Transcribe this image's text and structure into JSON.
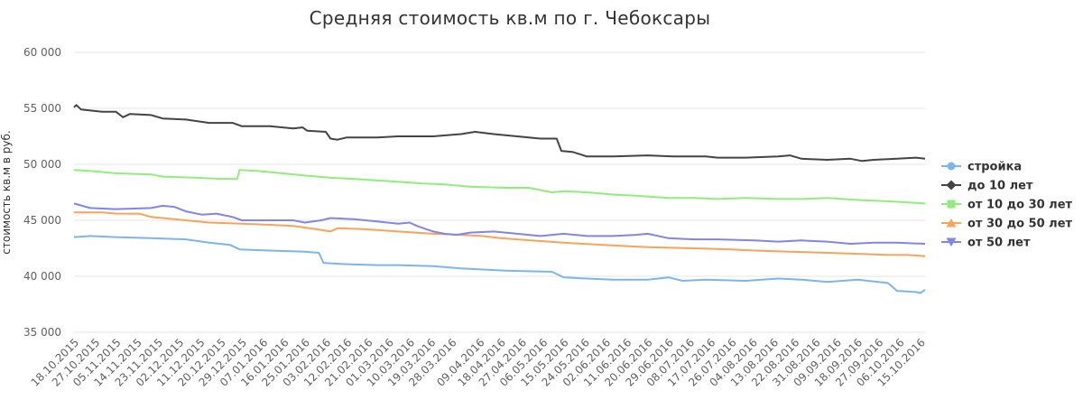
{
  "chart_data": {
    "type": "line",
    "title": "Средняя стоимость кв.м по г. Чебоксары",
    "ylabel": "стоимость кв.м в руб.",
    "xlabel": "",
    "ylim": [
      35000,
      60000
    ],
    "yticks": [
      35000,
      40000,
      45000,
      50000,
      55000,
      60000
    ],
    "ytick_labels": [
      "35 000",
      "40 000",
      "45 000",
      "50 000",
      "55 000",
      "60 000"
    ],
    "x_start": "18.10.2015",
    "x_end": "17.10.2016",
    "xticks": [
      "18.10.2015",
      "27.10.2015",
      "05.11.2015",
      "14.11.2015",
      "23.11.2015",
      "02.12.2015",
      "11.12.2015",
      "20.12.2015",
      "29.12.2015",
      "07.01.2016",
      "16.01.2016",
      "25.01.2016",
      "03.02.2016",
      "12.02.2016",
      "21.02.2016",
      "01.03.2016",
      "10.03.2016",
      "19.03.2016",
      "28.03.2016",
      "09.04.2016",
      "18.04.2016",
      "27.04.2016",
      "06.05.2016",
      "15.05.2016",
      "24.05.2016",
      "02.06.2016",
      "11.06.2016",
      "20.06.2016",
      "29.06.2016",
      "08.07.2016",
      "17.07.2016",
      "26.07.2016",
      "04.08.2016",
      "13.08.2016",
      "22.08.2016",
      "31.08.2016",
      "09.09.2016",
      "18.09.2016",
      "27.09.2016",
      "06.10.2016",
      "15.10.2016"
    ],
    "grid": true,
    "legend_position": "right",
    "series": [
      {
        "name": "стройка",
        "color": "#7cb5ec",
        "marker": "circle",
        "points": [
          [
            "18.10.2015",
            43500
          ],
          [
            "25.10.2015",
            43600
          ],
          [
            "05.11.2015",
            43500
          ],
          [
            "20.11.2015",
            43400
          ],
          [
            "05.12.2015",
            43300
          ],
          [
            "15.12.2015",
            43000
          ],
          [
            "24.12.2015",
            42800
          ],
          [
            "28.12.2015",
            42400
          ],
          [
            "10.01.2016",
            42300
          ],
          [
            "25.01.2016",
            42200
          ],
          [
            "31.01.2016",
            42100
          ],
          [
            "02.02.2016",
            41200
          ],
          [
            "10.02.2016",
            41100
          ],
          [
            "25.02.2016",
            41000
          ],
          [
            "05.03.2016",
            41000
          ],
          [
            "20.03.2016",
            40900
          ],
          [
            "01.04.2016",
            40700
          ],
          [
            "20.04.2016",
            40500
          ],
          [
            "10.05.2016",
            40400
          ],
          [
            "15.05.2016",
            39900
          ],
          [
            "25.05.2016",
            39800
          ],
          [
            "05.06.2016",
            39700
          ],
          [
            "20.06.2016",
            39700
          ],
          [
            "29.06.2016",
            39900
          ],
          [
            "05.07.2016",
            39600
          ],
          [
            "15.07.2016",
            39700
          ],
          [
            "01.08.2016",
            39600
          ],
          [
            "15.08.2016",
            39800
          ],
          [
            "25.08.2016",
            39700
          ],
          [
            "05.09.2016",
            39500
          ],
          [
            "18.09.2016",
            39700
          ],
          [
            "01.10.2016",
            39400
          ],
          [
            "05.10.2016",
            38700
          ],
          [
            "13.10.2016",
            38600
          ],
          [
            "15.10.2016",
            38500
          ],
          [
            "17.10.2016",
            38800
          ]
        ]
      },
      {
        "name": "до 10 лет",
        "color": "#434348",
        "marker": "diamond",
        "points": [
          [
            "18.10.2015",
            55100
          ],
          [
            "19.10.2015",
            55300
          ],
          [
            "21.10.2015",
            54900
          ],
          [
            "30.10.2015",
            54700
          ],
          [
            "05.11.2015",
            54700
          ],
          [
            "08.11.2015",
            54200
          ],
          [
            "11.11.2015",
            54500
          ],
          [
            "20.11.2015",
            54400
          ],
          [
            "25.11.2015",
            54100
          ],
          [
            "05.12.2015",
            54000
          ],
          [
            "15.12.2015",
            53700
          ],
          [
            "25.12.2015",
            53700
          ],
          [
            "29.12.2015",
            53400
          ],
          [
            "10.01.2016",
            53400
          ],
          [
            "20.01.2016",
            53200
          ],
          [
            "24.01.2016",
            53300
          ],
          [
            "26.01.2016",
            53000
          ],
          [
            "03.02.2016",
            52900
          ],
          [
            "05.02.2016",
            52300
          ],
          [
            "08.02.2016",
            52200
          ],
          [
            "12.02.2016",
            52400
          ],
          [
            "25.02.2016",
            52400
          ],
          [
            "05.03.2016",
            52500
          ],
          [
            "20.03.2016",
            52500
          ],
          [
            "01.04.2016",
            52700
          ],
          [
            "07.04.2016",
            52900
          ],
          [
            "15.04.2016",
            52700
          ],
          [
            "25.04.2016",
            52500
          ],
          [
            "05.05.2016",
            52300
          ],
          [
            "12.05.2016",
            52300
          ],
          [
            "14.05.2016",
            51200
          ],
          [
            "19.05.2016",
            51100
          ],
          [
            "22.05.2016",
            50900
          ],
          [
            "25.05.2016",
            50700
          ],
          [
            "05.06.2016",
            50700
          ],
          [
            "20.06.2016",
            50800
          ],
          [
            "01.07.2016",
            50700
          ],
          [
            "15.07.2016",
            50700
          ],
          [
            "20.07.2016",
            50600
          ],
          [
            "01.08.2016",
            50600
          ],
          [
            "15.08.2016",
            50700
          ],
          [
            "20.08.2016",
            50800
          ],
          [
            "25.08.2016",
            50500
          ],
          [
            "05.09.2016",
            50400
          ],
          [
            "15.09.2016",
            50500
          ],
          [
            "20.09.2016",
            50300
          ],
          [
            "25.09.2016",
            50400
          ],
          [
            "05.10.2016",
            50500
          ],
          [
            "13.10.2016",
            50600
          ],
          [
            "17.10.2016",
            50500
          ]
        ]
      },
      {
        "name": "от 10 до 30 лет",
        "color": "#90ed7d",
        "marker": "square",
        "points": [
          [
            "18.10.2015",
            49500
          ],
          [
            "25.10.2015",
            49400
          ],
          [
            "05.11.2015",
            49200
          ],
          [
            "20.11.2015",
            49100
          ],
          [
            "25.11.2015",
            48900
          ],
          [
            "10.12.2015",
            48800
          ],
          [
            "20.12.2015",
            48700
          ],
          [
            "25.12.2015",
            48700
          ],
          [
            "27.12.2015",
            48700
          ],
          [
            "28.12.2015",
            49500
          ],
          [
            "05.01.2016",
            49400
          ],
          [
            "15.01.2016",
            49200
          ],
          [
            "25.01.2016",
            49000
          ],
          [
            "05.02.2016",
            48800
          ],
          [
            "15.02.2016",
            48700
          ],
          [
            "01.03.2016",
            48500
          ],
          [
            "15.03.2016",
            48300
          ],
          [
            "25.03.2016",
            48200
          ],
          [
            "05.04.2016",
            48000
          ],
          [
            "20.04.2016",
            47900
          ],
          [
            "30.04.2016",
            47900
          ],
          [
            "05.05.2016",
            47700
          ],
          [
            "10.05.2016",
            47500
          ],
          [
            "15.05.2016",
            47600
          ],
          [
            "25.05.2016",
            47500
          ],
          [
            "05.06.2016",
            47300
          ],
          [
            "15.06.2016",
            47200
          ],
          [
            "29.06.2016",
            47000
          ],
          [
            "10.07.2016",
            47000
          ],
          [
            "20.07.2016",
            46900
          ],
          [
            "01.08.2016",
            47000
          ],
          [
            "15.08.2016",
            46900
          ],
          [
            "25.08.2016",
            46900
          ],
          [
            "05.09.2016",
            47000
          ],
          [
            "20.09.2016",
            46800
          ],
          [
            "01.10.2016",
            46700
          ],
          [
            "10.10.2016",
            46600
          ],
          [
            "17.10.2016",
            46500
          ]
        ]
      },
      {
        "name": "от 30 до 50 лет",
        "color": "#f7a35c",
        "marker": "triangle",
        "points": [
          [
            "18.10.2015",
            45700
          ],
          [
            "30.10.2015",
            45700
          ],
          [
            "05.11.2015",
            45600
          ],
          [
            "15.11.2015",
            45600
          ],
          [
            "20.11.2015",
            45300
          ],
          [
            "05.12.2015",
            45000
          ],
          [
            "15.12.2015",
            44800
          ],
          [
            "29.12.2015",
            44700
          ],
          [
            "10.01.2016",
            44600
          ],
          [
            "20.01.2016",
            44500
          ],
          [
            "30.01.2016",
            44200
          ],
          [
            "05.02.2016",
            44000
          ],
          [
            "08.02.2016",
            44300
          ],
          [
            "20.02.2016",
            44200
          ],
          [
            "05.03.2016",
            44000
          ],
          [
            "20.03.2016",
            43800
          ],
          [
            "01.04.2016",
            43700
          ],
          [
            "10.04.2016",
            43600
          ],
          [
            "18.04.2016",
            43400
          ],
          [
            "01.05.2016",
            43200
          ],
          [
            "15.05.2016",
            43000
          ],
          [
            "01.06.2016",
            42800
          ],
          [
            "20.06.2016",
            42600
          ],
          [
            "10.07.2016",
            42500
          ],
          [
            "26.07.2016",
            42400
          ],
          [
            "05.08.2016",
            42300
          ],
          [
            "20.08.2016",
            42200
          ],
          [
            "05.09.2016",
            42100
          ],
          [
            "20.09.2016",
            42000
          ],
          [
            "01.10.2016",
            41900
          ],
          [
            "10.10.2016",
            41900
          ],
          [
            "17.10.2016",
            41800
          ]
        ]
      },
      {
        "name": "от 50 лет",
        "color": "#8085e9",
        "marker": "triangle-down",
        "points": [
          [
            "18.10.2015",
            46500
          ],
          [
            "25.10.2015",
            46100
          ],
          [
            "05.11.2015",
            46000
          ],
          [
            "20.11.2015",
            46100
          ],
          [
            "25.11.2015",
            46300
          ],
          [
            "30.11.2015",
            46200
          ],
          [
            "05.12.2015",
            45800
          ],
          [
            "12.12.2015",
            45500
          ],
          [
            "18.12.2015",
            45600
          ],
          [
            "25.12.2015",
            45300
          ],
          [
            "29.12.2015",
            45000
          ],
          [
            "10.01.2016",
            45000
          ],
          [
            "20.01.2016",
            45000
          ],
          [
            "25.01.2016",
            44800
          ],
          [
            "01.02.2016",
            45000
          ],
          [
            "05.02.2016",
            45200
          ],
          [
            "15.02.2016",
            45100
          ],
          [
            "25.02.2016",
            44900
          ],
          [
            "05.03.2016",
            44700
          ],
          [
            "10.03.2016",
            44800
          ],
          [
            "13.03.2016",
            44500
          ],
          [
            "20.03.2016",
            44000
          ],
          [
            "25.03.2016",
            43800
          ],
          [
            "30.03.2016",
            43700
          ],
          [
            "05.04.2016",
            43900
          ],
          [
            "15.04.2016",
            44000
          ],
          [
            "25.04.2016",
            43800
          ],
          [
            "05.05.2016",
            43600
          ],
          [
            "15.05.2016",
            43800
          ],
          [
            "25.05.2016",
            43600
          ],
          [
            "05.06.2016",
            43600
          ],
          [
            "15.06.2016",
            43700
          ],
          [
            "20.06.2016",
            43800
          ],
          [
            "29.06.2016",
            43400
          ],
          [
            "10.07.2016",
            43300
          ],
          [
            "20.07.2016",
            43300
          ],
          [
            "05.08.2016",
            43200
          ],
          [
            "15.08.2016",
            43100
          ],
          [
            "25.08.2016",
            43200
          ],
          [
            "05.09.2016",
            43100
          ],
          [
            "15.09.2016",
            42900
          ],
          [
            "25.09.2016",
            43000
          ],
          [
            "05.10.2016",
            43000
          ],
          [
            "17.10.2016",
            42900
          ]
        ]
      }
    ]
  }
}
